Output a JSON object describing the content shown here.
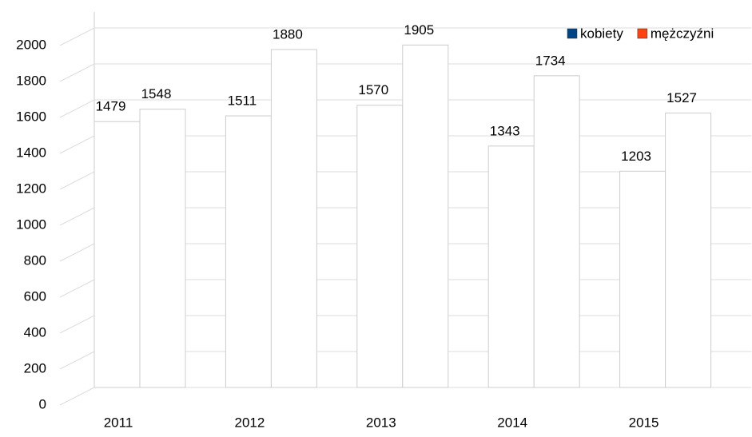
{
  "chart_data": {
    "type": "bar",
    "categories": [
      "2011",
      "2012",
      "2013",
      "2014",
      "2015"
    ],
    "series": [
      {
        "name": "kobiety",
        "color": "#004586",
        "values": [
          1479,
          1511,
          1570,
          1343,
          1203
        ]
      },
      {
        "name": "mężczyźni",
        "color": "#ff420e",
        "values": [
          1548,
          1880,
          1905,
          1734,
          1527
        ]
      }
    ],
    "ylim": [
      0,
      2000
    ],
    "yticks": [
      0,
      200,
      400,
      600,
      800,
      1000,
      1200,
      1400,
      1600,
      1800,
      2000
    ],
    "grid": true,
    "legend": "top-right"
  }
}
